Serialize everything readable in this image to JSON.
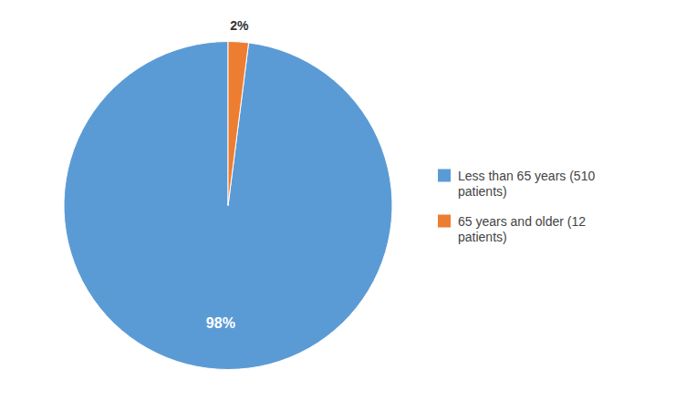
{
  "chart_data": {
    "type": "pie",
    "categories": [
      "Less than 65 years (510\n patients)",
      "65 years and older (12\n patients)"
    ],
    "values": [
      98,
      2
    ],
    "value_labels": [
      "98%",
      "2%"
    ],
    "colors": [
      "#5B9BD5",
      "#ED7D31"
    ],
    "data_labels": true,
    "legend": "right"
  }
}
